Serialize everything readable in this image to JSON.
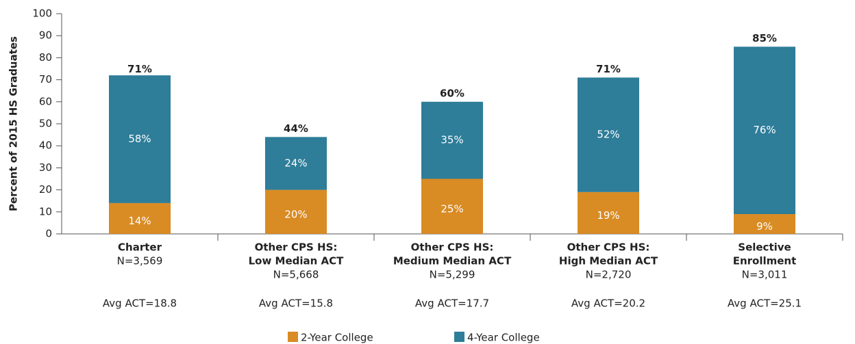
{
  "chart_data": {
    "type": "stacked_bar",
    "y_label": "Percent of 2015 HS Graduates",
    "categories": [
      [
        "Charter"
      ],
      [
        "Other CPS HS:",
        "Low Median ACT"
      ],
      [
        "Other CPS HS:",
        "Medium Median ACT"
      ],
      [
        "Other CPS HS:",
        "High Median ACT"
      ],
      [
        "Selective",
        "Enrollment"
      ]
    ],
    "n_labels": [
      "N=3,569",
      "N=5,668",
      "N=5,299",
      "N=2,720",
      "N=3,011"
    ],
    "act_labels": [
      "Avg ACT=18.8",
      "Avg ACT=15.8",
      "Avg ACT=17.7",
      "Avg ACT=20.2",
      "Avg ACT=25.1"
    ],
    "series": [
      {
        "name": "2-Year College",
        "color": "#d98b24",
        "values": [
          14,
          20,
          25,
          19,
          9
        ],
        "value_labels": [
          "14%",
          "20%",
          "25%",
          "19%",
          "9%"
        ]
      },
      {
        "name": "4-Year College",
        "color": "#2e7d99",
        "values": [
          58,
          24,
          35,
          52,
          76
        ],
        "value_labels": [
          "58%",
          "24%",
          "35%",
          "52%",
          "76%"
        ]
      }
    ],
    "totals": [
      71,
      44,
      60,
      71,
      85
    ],
    "total_labels": [
      "71%",
      "44%",
      "60%",
      "71%",
      "85%"
    ],
    "ylim": [
      0,
      100
    ],
    "yticks": [
      0,
      10,
      20,
      30,
      40,
      50,
      60,
      70,
      80,
      90,
      100
    ],
    "grid": false
  }
}
